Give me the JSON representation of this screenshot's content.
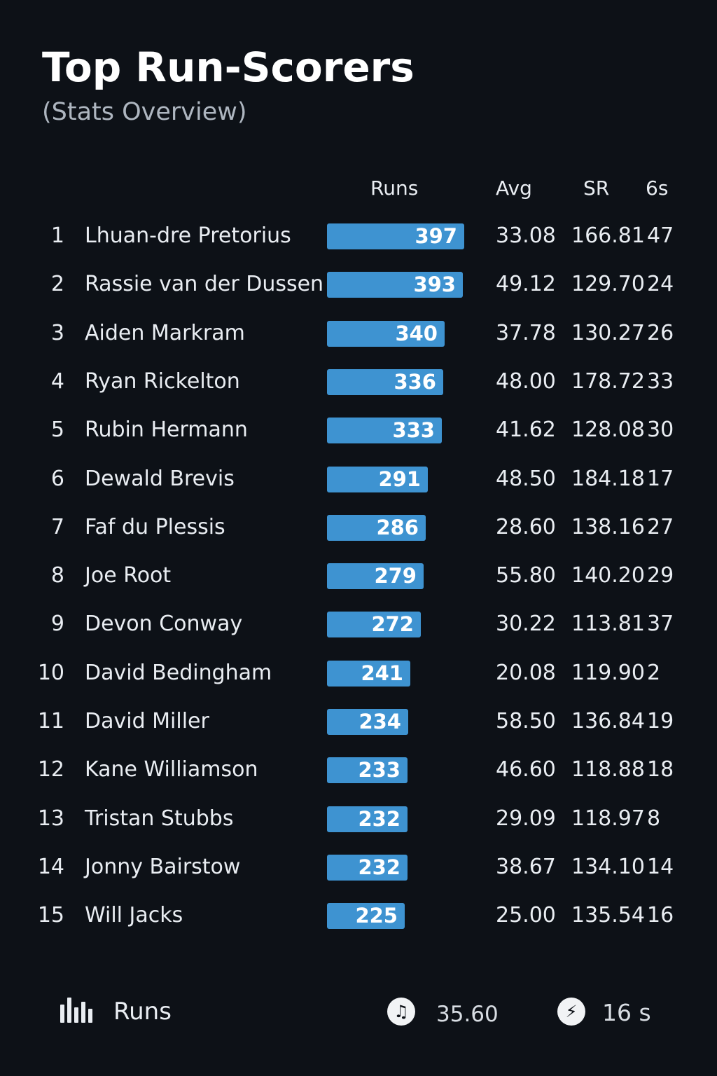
{
  "header": {
    "title": "Top Run-Scorers",
    "subtitle": "(Stats Overview)"
  },
  "columns": {
    "runs": "Runs",
    "avg": "Avg",
    "sr": "SR",
    "sixes": "6s"
  },
  "accent_color": "#3e93d1",
  "players": [
    {
      "rank": "1",
      "name": "Lhuan-dre Pretorius",
      "runs": 397,
      "avg": "33.08",
      "sr": "166.81",
      "sixes": "47"
    },
    {
      "rank": "2",
      "name": "Rassie van der Dussen",
      "runs": 393,
      "avg": "49.12",
      "sr": "129.70",
      "sixes": "24"
    },
    {
      "rank": "3",
      "name": "Aiden Markram",
      "runs": 340,
      "avg": "37.78",
      "sr": "130.27",
      "sixes": "26"
    },
    {
      "rank": "4",
      "name": "Ryan Rickelton",
      "runs": 336,
      "avg": "48.00",
      "sr": "178.72",
      "sixes": "33"
    },
    {
      "rank": "5",
      "name": "Rubin Hermann",
      "runs": 333,
      "avg": "41.62",
      "sr": "128.08",
      "sixes": "30"
    },
    {
      "rank": "6",
      "name": "Dewald Brevis",
      "runs": 291,
      "avg": "48.50",
      "sr": "184.18",
      "sixes": "17"
    },
    {
      "rank": "7",
      "name": "Faf du Plessis",
      "runs": 286,
      "avg": "28.60",
      "sr": "138.16",
      "sixes": "27"
    },
    {
      "rank": "8",
      "name": "Joe Root",
      "runs": 279,
      "avg": "55.80",
      "sr": "140.20",
      "sixes": "29"
    },
    {
      "rank": "9",
      "name": "Devon Conway",
      "runs": 272,
      "avg": "30.22",
      "sr": "113.81",
      "sixes": "37"
    },
    {
      "rank": "10",
      "name": "David Bedingham",
      "runs": 241,
      "avg": "20.08",
      "sr": "119.90",
      "sixes": "2"
    },
    {
      "rank": "11",
      "name": "David Miller",
      "runs": 234,
      "avg": "58.50",
      "sr": "136.84",
      "sixes": "19"
    },
    {
      "rank": "12",
      "name": "Kane Williamson",
      "runs": 233,
      "avg": "46.60",
      "sr": "118.88",
      "sixes": "18"
    },
    {
      "rank": "13",
      "name": "Tristan Stubbs",
      "runs": 232,
      "avg": "29.09",
      "sr": "118.97",
      "sixes": "8"
    },
    {
      "rank": "14",
      "name": "Jonny Bairstow",
      "runs": 232,
      "avg": "38.67",
      "sr": "134.10",
      "sixes": "14"
    },
    {
      "rank": "15",
      "name": "Will Jacks",
      "runs": 225,
      "avg": "25.00",
      "sr": "135.54",
      "sixes": "16"
    }
  ],
  "footer": {
    "runs_label": "Runs",
    "runs_icon": "bar-chart-icon",
    "avg_value": "35.60",
    "avg_icon": "music-note-icon",
    "sixes_value": "16 s",
    "sixes_icon": "cricket-ball-icon"
  }
}
